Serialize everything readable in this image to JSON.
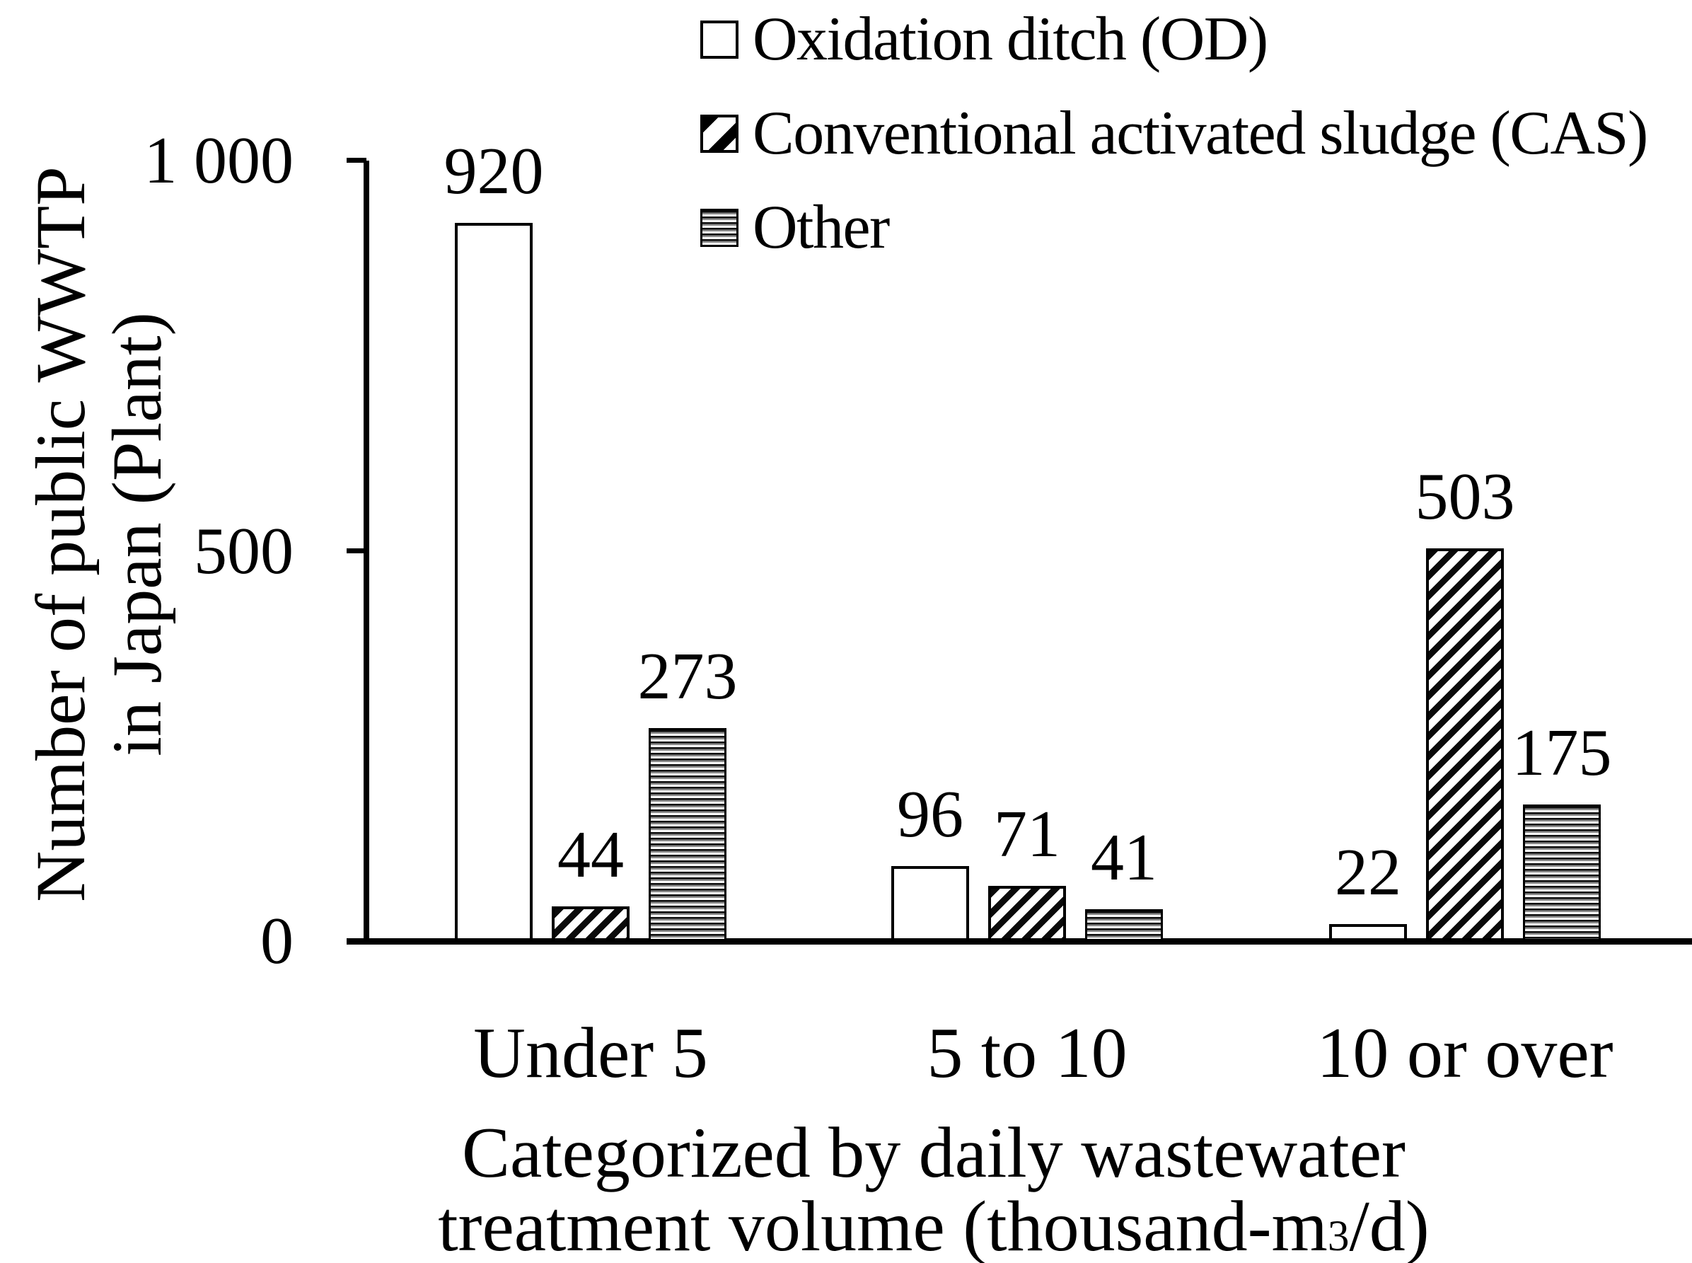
{
  "figure": {
    "background_color": "#ffffff",
    "ink_color": "#000000",
    "other_stripe_gray": "#8a8a8a"
  },
  "chart_data": {
    "type": "bar",
    "title": "",
    "categories": [
      "Under 5",
      "5 to 10",
      "10 or over"
    ],
    "series": [
      {
        "name": "Oxidation ditch (OD)",
        "pattern": "white-empty",
        "values": [
          920,
          96,
          22
        ]
      },
      {
        "name": "Conventional activated sludge (CAS)",
        "pattern": "black-diagonal-hatch",
        "values": [
          44,
          71,
          503
        ]
      },
      {
        "name": "Other",
        "pattern": "gray-horizontal-stripes",
        "values": [
          273,
          41,
          175
        ]
      }
    ],
    "bar_value_labels_shown": true,
    "ylim": [
      0,
      1000
    ],
    "yticks": [
      {
        "value": 0,
        "label": "0"
      },
      {
        "value": 500,
        "label": "500"
      },
      {
        "value": 1000,
        "label": "1 000"
      }
    ],
    "grid": false,
    "legend_position": "top-right",
    "ylabel_lines": [
      "Number of public WWTP",
      "in Japan (Plant)"
    ],
    "xlabel_lines": [
      "Categorized by daily wastewater",
      "treatment volume (thousand-m³/d)"
    ],
    "xlabel_line2_parts": {
      "pre": "treatment volume (thousand-m",
      "sup": "3",
      "post": "/d)"
    }
  }
}
